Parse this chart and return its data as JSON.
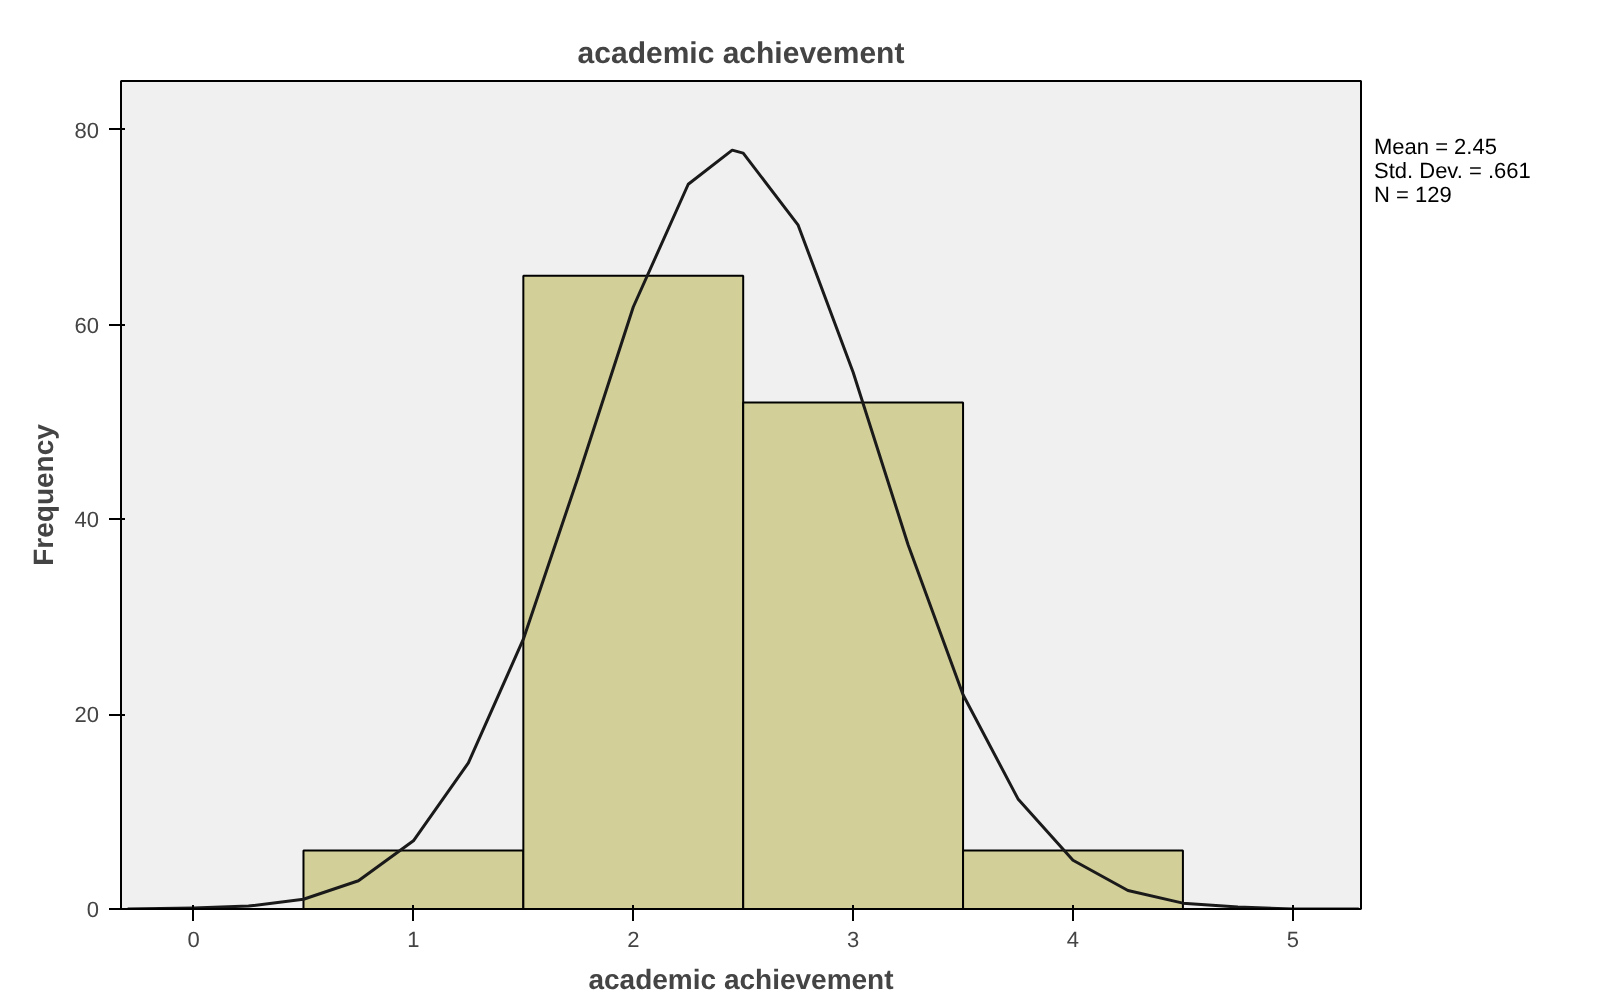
{
  "chart_data": {
    "type": "histogram",
    "title": "academic achievement",
    "xlabel": "academic achievement",
    "ylabel": "Frequency",
    "series": [
      {
        "bins": [
          0.5,
          1.5,
          2.5,
          3.5,
          4.5
        ],
        "values": [
          6,
          65,
          52,
          6
        ],
        "color": "#d3cf98"
      },
      {
        "type": "line",
        "color": "#1a1a1a",
        "x": [
          -0.3,
          0,
          0.25,
          0.5,
          0.75,
          1,
          1.25,
          1.5,
          1.75,
          2,
          2.25,
          2.45,
          2.5,
          2.75,
          3,
          3.25,
          3.5,
          3.75,
          4,
          4.25,
          4.5,
          4.75,
          5,
          5.3
        ],
        "values": [
          0,
          0.1,
          0.3,
          1.0,
          2.9,
          7.0,
          15.0,
          27.7,
          44.4,
          61.8,
          74.4,
          77.9,
          77.6,
          70.2,
          55.1,
          37.4,
          22.0,
          11.3,
          5.0,
          1.9,
          0.6,
          0.2,
          0,
          0
        ]
      }
    ],
    "xlim": [
      -0.33,
      5.31
    ],
    "ylim": [
      0,
      85
    ],
    "xticks": [
      0,
      1,
      2,
      3,
      4,
      5
    ],
    "yticks": [
      0,
      20,
      40,
      60,
      80
    ],
    "grid": false,
    "annotations": [
      "Mean = 2.45",
      "Std. Dev. = .661",
      "N = 129"
    ]
  }
}
